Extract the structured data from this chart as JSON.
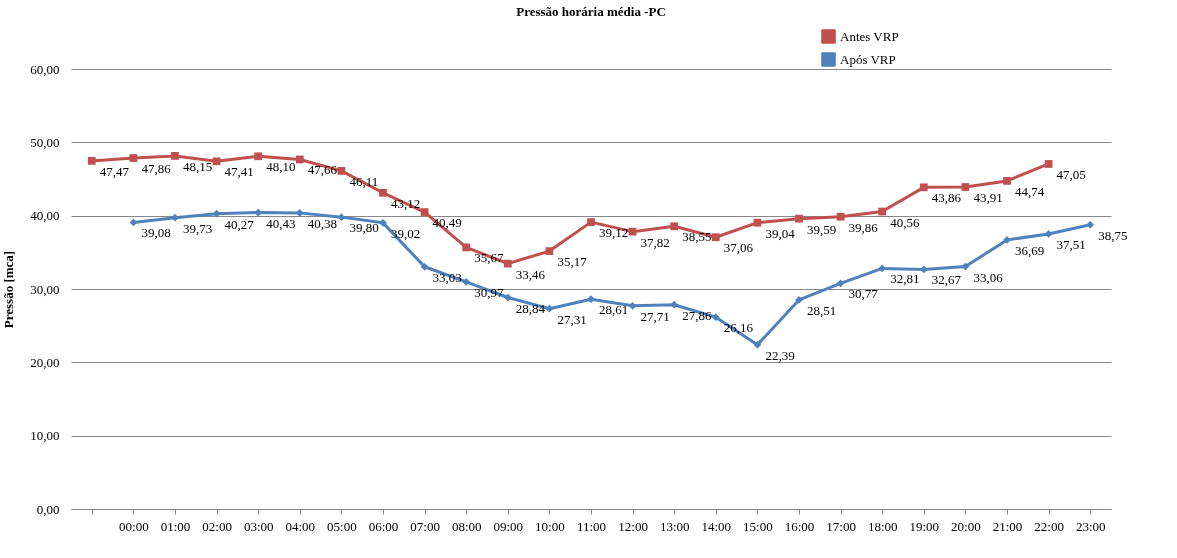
{
  "chart_data": {
    "type": "line",
    "title": "Pressão horária média -PC",
    "ylabel": "Pressão [mca]",
    "categories": [
      null,
      "00:00",
      "01:00",
      "02:00",
      "03:00",
      "04:00",
      "05:00",
      "06:00",
      "07:00",
      "08:00",
      "09:00",
      "10:00",
      "11:00",
      "12:00",
      "13:00",
      "14:00",
      "15:00",
      "16:00",
      "17:00",
      "18:00",
      "19:00",
      "20:00",
      "21:00",
      "22:00",
      "23:00"
    ],
    "series": [
      {
        "name": "Antes VRP",
        "color": "#c0504d",
        "marker": "square",
        "values": [
          47.47,
          47.86,
          48.15,
          47.41,
          48.1,
          47.66,
          46.11,
          43.12,
          40.49,
          35.67,
          33.46,
          35.17,
          39.12,
          37.82,
          38.55,
          37.06,
          39.04,
          39.59,
          39.86,
          40.56,
          43.86,
          43.91,
          44.74,
          47.05,
          null
        ],
        "value_labels": [
          "47,47",
          "47,86",
          "48,15",
          "47,41",
          "48,10",
          "47,66",
          "46,11",
          "43,12",
          "40,49",
          "35,67",
          "33,46",
          "35,17",
          "39,12",
          "37,82",
          "38,55",
          "37,06",
          "39,04",
          "39,59",
          "39,86",
          "40,56",
          "43,86",
          "43,91",
          "44,74",
          "47,05",
          null
        ]
      },
      {
        "name": "Após VRP",
        "color": "#4f81bd",
        "marker": "diamond",
        "values": [
          null,
          39.08,
          39.73,
          40.27,
          40.43,
          40.38,
          39.8,
          39.02,
          33.03,
          30.97,
          28.84,
          27.31,
          28.61,
          27.71,
          27.86,
          26.16,
          22.39,
          28.51,
          30.77,
          32.81,
          32.67,
          33.06,
          36.69,
          37.51,
          38.75
        ],
        "value_labels": [
          null,
          "39,08",
          "39,73",
          "40,27",
          "40,43",
          "40,38",
          "39,80",
          "39,02",
          "33,03",
          "30,97",
          "28,84",
          "27,31",
          "28,61",
          "27,71",
          "27,86",
          "26,16",
          "22,39",
          "28,51",
          "30,77",
          "32,81",
          "32,67",
          "33,06",
          "36,69",
          "37,51",
          "38,75"
        ]
      }
    ],
    "ylim": [
      0,
      60
    ],
    "yticks": [
      {
        "value": 0,
        "label": "0,00"
      },
      {
        "value": 10,
        "label": "10,00"
      },
      {
        "value": 20,
        "label": "20,00"
      },
      {
        "value": 30,
        "label": "30,00"
      },
      {
        "value": 40,
        "label": "40,00"
      },
      {
        "value": 50,
        "label": "50,00"
      },
      {
        "value": 60,
        "label": "60,00"
      }
    ],
    "grid": "y",
    "legend": "top right",
    "line_style": "solid"
  }
}
